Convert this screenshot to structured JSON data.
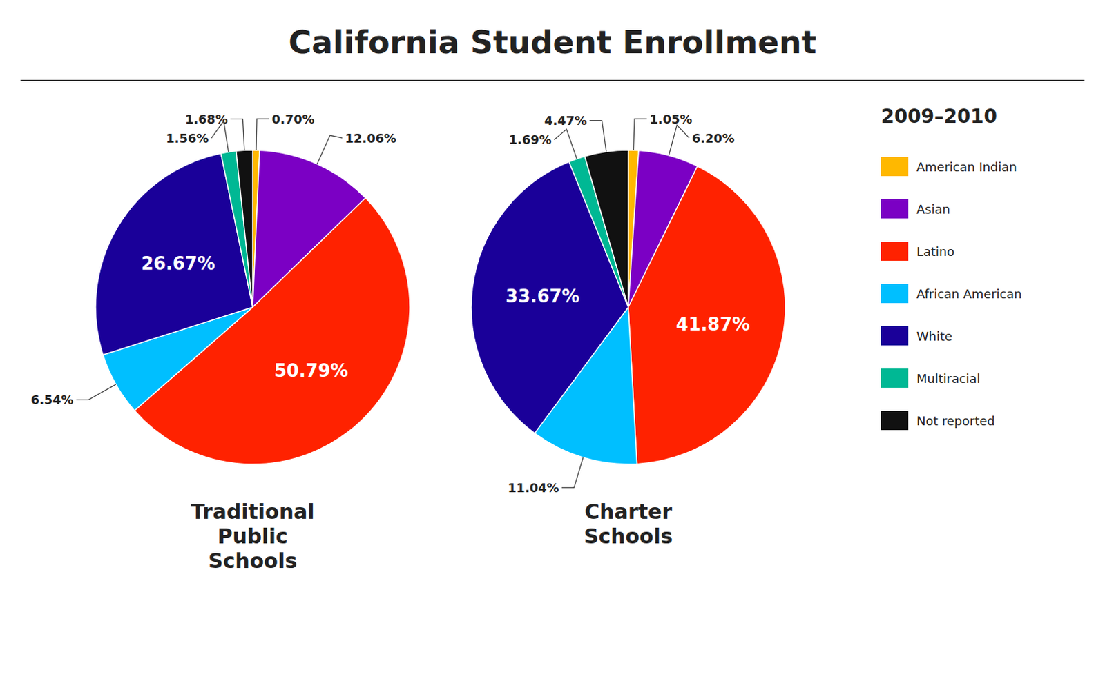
{
  "chart_data": {
    "type": "pie",
    "title": "California Student Enrollment",
    "subtitle": "2009–2010",
    "categories": [
      "American Indian",
      "Asian",
      "Latino",
      "African American",
      "White",
      "Multiracial",
      "Not reported"
    ],
    "colors": [
      "#FFB800",
      "#7B00C4",
      "#FF2200",
      "#00BFFF",
      "#1A0099",
      "#00B894",
      "#111111"
    ],
    "series": [
      {
        "name": "Traditional\nPublic\nSchools",
        "values": [
          0.7,
          12.06,
          50.79,
          6.54,
          26.67,
          1.56,
          1.68
        ],
        "value_labels": [
          "0.70%",
          "12.06%",
          "50.79%",
          "6.54%",
          "26.67%",
          "1.56%",
          "1.68%"
        ]
      },
      {
        "name": "Charter\nSchools",
        "values": [
          1.05,
          6.2,
          41.87,
          11.04,
          33.67,
          1.69,
          4.47
        ],
        "value_labels": [
          "1.05%",
          "6.20%",
          "41.87%",
          "11.04%",
          "33.67%",
          "1.69%",
          "4.47%"
        ]
      }
    ],
    "data_labels": true,
    "legend": "right"
  }
}
